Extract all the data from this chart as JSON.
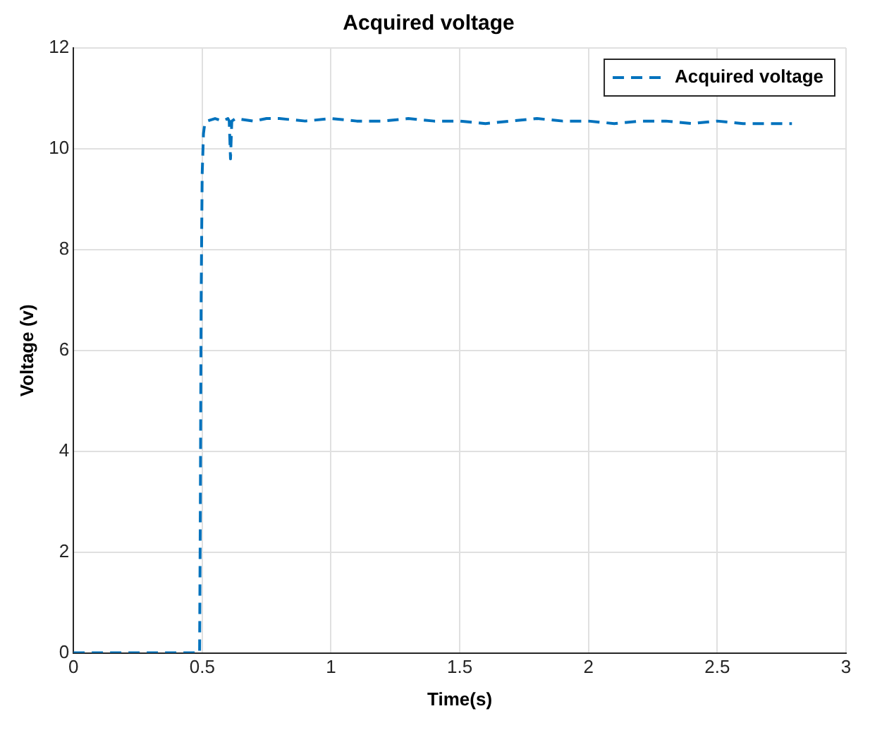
{
  "chart_data": {
    "type": "line",
    "title": "Acquired voltage",
    "xlabel": "Time(s)",
    "ylabel": "Voltage (v)",
    "x": [
      0,
      0.1,
      0.2,
      0.3,
      0.4,
      0.49,
      0.493,
      0.496,
      0.5,
      0.505,
      0.51,
      0.52,
      0.55,
      0.58,
      0.6,
      0.605,
      0.61,
      0.615,
      0.63,
      0.7,
      0.75,
      0.8,
      0.9,
      1.0,
      1.1,
      1.2,
      1.3,
      1.4,
      1.5,
      1.6,
      1.7,
      1.8,
      1.9,
      2.0,
      2.1,
      2.2,
      2.3,
      2.4,
      2.5,
      2.6,
      2.7,
      2.79
    ],
    "series": [
      {
        "name": "Acquired voltage",
        "color": "#0072bd",
        "values": [
          0,
          0,
          0,
          0,
          0,
          0,
          3,
          7,
          9.5,
          10.3,
          10.5,
          10.55,
          10.6,
          10.55,
          10.6,
          10.55,
          9.8,
          10.55,
          10.6,
          10.55,
          10.6,
          10.6,
          10.55,
          10.6,
          10.55,
          10.55,
          10.6,
          10.55,
          10.55,
          10.5,
          10.55,
          10.6,
          10.55,
          10.55,
          10.5,
          10.55,
          10.55,
          10.5,
          10.55,
          10.5,
          10.5,
          10.5
        ]
      }
    ],
    "xlim": [
      0,
      3
    ],
    "xticks": [
      0,
      0.5,
      1,
      1.5,
      2,
      2.5,
      3
    ],
    "ylim": [
      0,
      12
    ],
    "yticks": [
      0,
      2,
      4,
      6,
      8,
      10,
      12
    ],
    "grid": true,
    "legend": "top right",
    "marker": "none",
    "line_style": "dashed"
  }
}
